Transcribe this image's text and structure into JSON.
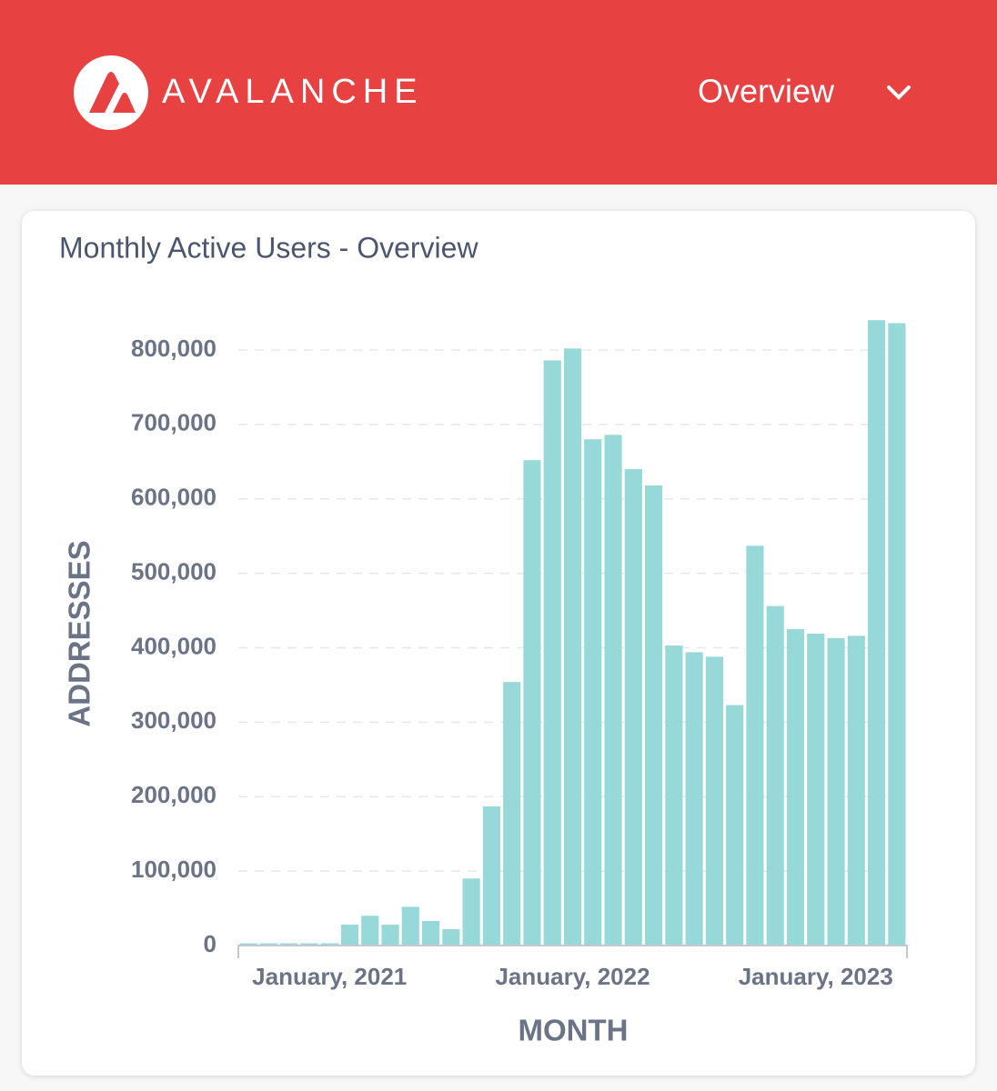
{
  "header": {
    "brand": "AVALANCHE",
    "menu": "Overview"
  },
  "chart_data": {
    "type": "bar",
    "title": "Monthly Active Users - Overview",
    "x_label": "MONTH",
    "y_label": "ADDRESSES",
    "categories": [
      null,
      null,
      null,
      null,
      "January, 2021",
      null,
      null,
      null,
      null,
      null,
      null,
      null,
      null,
      null,
      null,
      null,
      "January, 2022",
      null,
      null,
      null,
      null,
      null,
      null,
      null,
      null,
      null,
      null,
      null,
      "January, 2023",
      null,
      null,
      null,
      null
    ],
    "values": [
      3000,
      3000,
      3000,
      3000,
      3000,
      28000,
      40000,
      28000,
      52000,
      33000,
      22000,
      90000,
      187000,
      354000,
      652000,
      786000,
      802000,
      680000,
      686000,
      640000,
      618000,
      403000,
      394000,
      388000,
      323000,
      537000,
      456000,
      425000,
      419000,
      413000,
      416000,
      840000,
      836000
    ],
    "color": "#97d9d9",
    "ylim": [
      0,
      850000
    ],
    "yticks": [
      0,
      {
        "value": 100000,
        "label": "100,000"
      },
      {
        "value": 200000,
        "label": "200,000"
      },
      {
        "value": 300000,
        "label": "300,000"
      },
      {
        "value": 400000,
        "label": "400,000"
      },
      {
        "value": 500000,
        "label": "500,000"
      },
      {
        "value": 600000,
        "label": "600,000"
      },
      {
        "value": 700000,
        "label": "700,000"
      },
      {
        "value": 800000,
        "label": "800,000"
      }
    ],
    "grid": true
  }
}
